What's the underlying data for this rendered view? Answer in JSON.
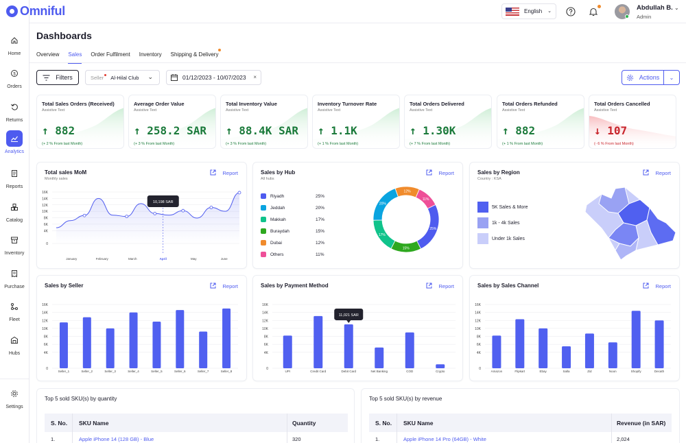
{
  "brand": {
    "name": "Omniful"
  },
  "sidebar": {
    "items": [
      {
        "label": "Home",
        "icon": "home-icon"
      },
      {
        "label": "Orders",
        "icon": "dollar-circle-icon"
      },
      {
        "label": "Returns",
        "icon": "return-arrow-icon"
      },
      {
        "label": "Analytics",
        "icon": "chart-line-icon",
        "active": true
      },
      {
        "label": "Reports",
        "icon": "document-icon"
      },
      {
        "label": "Catalog",
        "icon": "boxes-icon"
      },
      {
        "label": "Inventory",
        "icon": "archive-box-icon"
      },
      {
        "label": "Purchase",
        "icon": "receipt-icon"
      },
      {
        "label": "Fleet",
        "icon": "nodes-icon"
      },
      {
        "label": "Hubs",
        "icon": "warehouse-icon"
      },
      {
        "label": "Settings",
        "icon": "gear-icon"
      }
    ]
  },
  "header": {
    "language": "English",
    "language_icon": "us-flag-icon",
    "help_icon": "help-circle-icon",
    "bell_icon": "bell-icon",
    "user_name": "Abdullah B.",
    "user_role": "Admin"
  },
  "page": {
    "title": "Dashboards"
  },
  "tabs": [
    "Overview",
    "Sales",
    "Order Fulfilment",
    "Inventory",
    "Shipping & Delivery"
  ],
  "active_tab": "Sales",
  "filters": {
    "button_label": "Filters",
    "seller_label": "Seller",
    "seller_value": "Al-Hilal Club",
    "date_range": "01/12/2023 - 10/07/2023",
    "actions_label": "Actions"
  },
  "kpis": [
    {
      "title": "Total Sales Orders (Received)",
      "subtitle": "Assistive Text",
      "value": "882",
      "delta": "(+ 2 % From last Month)",
      "trend": "up"
    },
    {
      "title": "Average Order Value",
      "subtitle": "Assistive Text",
      "value": "258.2 SAR",
      "delta": "(+ 3 % From last Month)",
      "trend": "up"
    },
    {
      "title": "Total Inventory Value",
      "subtitle": "Assistive Text",
      "value": "88.4K SAR",
      "delta": "(+ 3 % From last Month)",
      "trend": "up"
    },
    {
      "title": "Inventory Turnover Rate",
      "subtitle": "Assistive Text",
      "value": "1.1K",
      "delta": "(+ 1 % From last Month)",
      "trend": "up"
    },
    {
      "title": "Total Orders Delivered",
      "subtitle": "Assistive Text",
      "value": "1.30K",
      "delta": "(+ 7 % From last Month)",
      "trend": "up"
    },
    {
      "title": "Total Orders Refunded",
      "subtitle": "Assistive Text",
      "value": "882",
      "delta": "(+ 1 % From last Month)",
      "trend": "up"
    },
    {
      "title": "Total Orders Cancelled",
      "subtitle": "Assistive Text",
      "value": "107",
      "delta": "(- 6 % From last Month)",
      "trend": "down"
    }
  ],
  "colors": {
    "accent": "#4e5bef",
    "positive": "#1a7a3a",
    "negative": "#c8262d"
  },
  "report_label": "Report",
  "cards": {
    "mom": {
      "title": "Total sales MoM",
      "subtitle": "Monthly sales"
    },
    "hub": {
      "title": "Sales by Hub",
      "subtitle": "All hubs"
    },
    "region": {
      "title": "Sales by Region",
      "subtitle": "Country : KSA"
    },
    "seller": {
      "title": "Sales by Seller"
    },
    "payment": {
      "title": "Sales by Payment Method"
    },
    "channel": {
      "title": "Sales by Sales Channel"
    }
  },
  "region_legend": [
    {
      "label": "5K Sales & More",
      "color": "#5060f0"
    },
    {
      "label": "1k - 4k Sales",
      "color": "#99a2f3"
    },
    {
      "label": "Under 1k Sales",
      "color": "#c9cefa"
    }
  ],
  "chart_data": [
    {
      "type": "line",
      "id": "mom",
      "categories": [
        "January",
        "February",
        "March",
        "April",
        "May",
        "June"
      ],
      "x": [
        0,
        0.4,
        0.8,
        1.2,
        1.6,
        2.0,
        2.4,
        2.8,
        3.2,
        3.6,
        4.0,
        4.4,
        4.8,
        5.2
      ],
      "values": [
        4900,
        7100,
        8700,
        14000,
        8800,
        8400,
        12400,
        9300,
        8800,
        10200,
        7900,
        11200,
        10000,
        15800
      ],
      "highlight": {
        "category": "April",
        "label": "10,198 SAR"
      },
      "yticks": [
        0,
        4000,
        6000,
        8000,
        10000,
        12000,
        14000,
        16000
      ],
      "ytick_labels": [
        "0",
        "4K",
        "6K",
        "8K",
        "10K",
        "12K",
        "14K",
        "16K"
      ],
      "ylim": [
        0,
        16000
      ]
    },
    {
      "type": "pie",
      "id": "hub",
      "labels": [
        "Riyadh",
        "Jeddah",
        "Makkah",
        "Buraydah",
        "Dubai",
        "Others"
      ],
      "values": [
        25,
        20,
        17,
        15,
        12,
        11
      ],
      "pct_labels": [
        "25%",
        "20%",
        "17%",
        "15%",
        "12%",
        "11%"
      ],
      "colors": [
        "#4e5bef",
        "#0aa4e0",
        "#10c38b",
        "#2ea81f",
        "#f08b2c",
        "#ee4f98"
      ]
    },
    {
      "type": "bar",
      "id": "seller",
      "categories": [
        "Seller_1",
        "Seller_2",
        "Seller_3",
        "Seller_4",
        "Seller_5",
        "Seller_6",
        "Seller_7",
        "Seller_8"
      ],
      "values": [
        11500,
        12800,
        10000,
        14000,
        11700,
        14600,
        9200,
        15000
      ],
      "yticks": [
        0,
        4000,
        6000,
        8000,
        10000,
        12000,
        14000,
        16000
      ],
      "ytick_labels": [
        "0",
        "4K",
        "6K",
        "8K",
        "10K",
        "12K",
        "14K",
        "16K"
      ],
      "ylim": [
        0,
        16000
      ]
    },
    {
      "type": "bar",
      "id": "payment",
      "categories": [
        "UPI",
        "Credit Card",
        "Debit Card",
        "Net Banking",
        "COD",
        "Crypto"
      ],
      "values": [
        8200,
        13100,
        11021,
        5200,
        9000,
        1000
      ],
      "highlight": {
        "index": 2,
        "label": "11,021 SAR"
      },
      "yticks": [
        0,
        4000,
        6000,
        8000,
        10000,
        12000,
        14000,
        16000
      ],
      "ytick_labels": [
        "0",
        "4K",
        "6K",
        "8K",
        "10K",
        "12K",
        "14K",
        "16K"
      ],
      "ylim": [
        0,
        16000
      ]
    },
    {
      "type": "bar",
      "id": "channel",
      "categories": [
        "Amazon",
        "Flipkart",
        "Ebay",
        "Salla",
        "Zid",
        "Noon",
        "Shopify",
        "Decath"
      ],
      "values": [
        8200,
        12300,
        10000,
        5500,
        8700,
        6500,
        14400,
        12000
      ],
      "yticks": [
        0,
        4000,
        6000,
        8000,
        10000,
        12000,
        14000,
        16000
      ],
      "ytick_labels": [
        "0",
        "4K",
        "6K",
        "8K",
        "10K",
        "12K",
        "14K",
        "16K"
      ],
      "ylim": [
        0,
        16000
      ]
    }
  ],
  "tables": {
    "by_quantity": {
      "title": "Top 5 sold SKU(s) by quantity",
      "headers": [
        "S. No.",
        "SKU Name",
        "Quantity"
      ],
      "rows": [
        [
          "1.",
          "Apple iPhone 14 (128 GB) - Blue",
          "320"
        ]
      ]
    },
    "by_revenue": {
      "title": "Top 5 sold SKU(s) by revenue",
      "headers": [
        "S. No.",
        "SKU Name",
        "Revenue (in SAR)"
      ],
      "rows": [
        [
          "1.",
          "Apple iPhone 14 Pro (64GB) - White",
          "2,024"
        ]
      ]
    }
  }
}
